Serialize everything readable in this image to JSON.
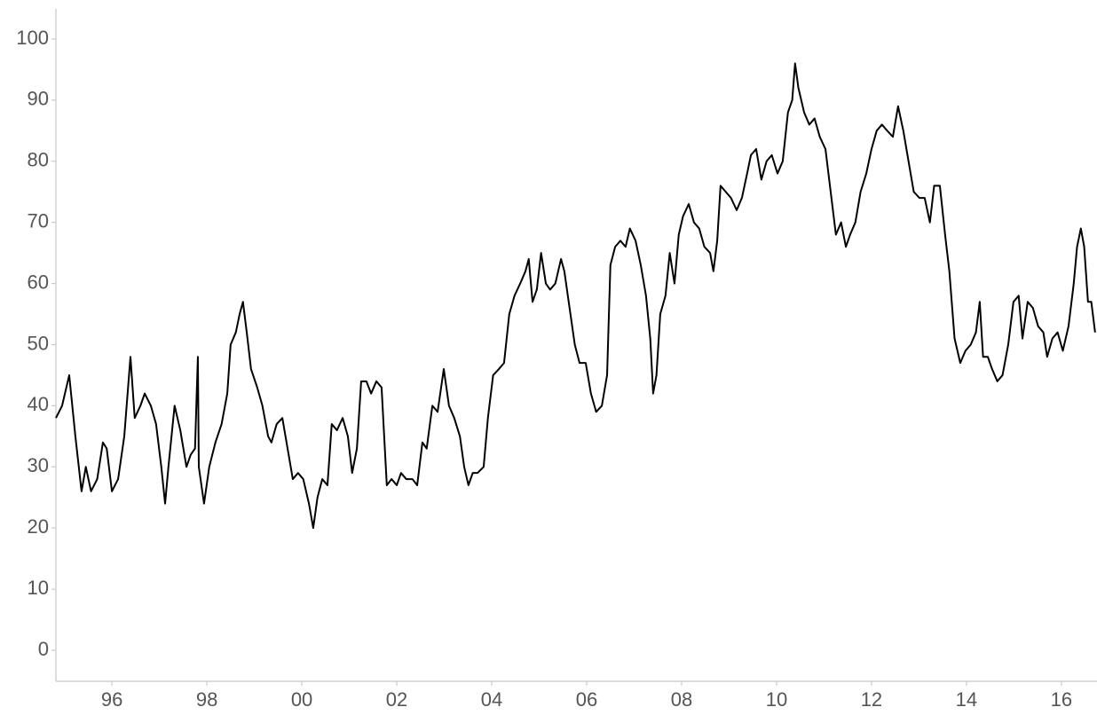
{
  "chart_data": {
    "type": "line",
    "color": "#000000",
    "x": [
      1994.82,
      1994.95,
      1995.1,
      1995.23,
      1995.36,
      1995.45,
      1995.56,
      1995.69,
      1995.81,
      1995.89,
      1996.0,
      1996.13,
      1996.26,
      1996.39,
      1996.48,
      1996.6,
      1996.69,
      1996.82,
      1996.93,
      1997.04,
      1997.12,
      1997.19,
      1997.32,
      1997.44,
      1997.57,
      1997.66,
      1997.75,
      1997.81,
      1997.83,
      1997.94,
      1998.05,
      1998.18,
      1998.31,
      1998.43,
      1998.5,
      1998.61,
      1998.69,
      1998.76,
      1998.84,
      1998.93,
      1999.06,
      1999.17,
      1999.29,
      1999.36,
      1999.47,
      1999.59,
      1999.7,
      1999.81,
      1999.92,
      2000.03,
      2000.15,
      2000.24,
      2000.33,
      2000.43,
      2000.54,
      2000.63,
      2000.74,
      2000.86,
      2000.97,
      2001.06,
      2001.16,
      2001.25,
      2001.36,
      2001.46,
      2001.57,
      2001.68,
      2001.79,
      2001.89,
      2002.0,
      2002.09,
      2002.2,
      2002.33,
      2002.43,
      2002.54,
      2002.63,
      2002.75,
      2002.86,
      2002.99,
      2003.1,
      2003.21,
      2003.33,
      2003.42,
      2003.51,
      2003.6,
      2003.7,
      2003.83,
      2003.92,
      2004.03,
      2004.15,
      2004.26,
      2004.37,
      2004.48,
      2004.6,
      2004.71,
      2004.78,
      2004.86,
      2004.95,
      2005.04,
      2005.14,
      2005.23,
      2005.34,
      2005.46,
      2005.53,
      2005.64,
      2005.75,
      2005.85,
      2005.98,
      2006.09,
      2006.2,
      2006.32,
      2006.43,
      2006.5,
      2006.6,
      2006.71,
      2006.82,
      2006.91,
      2007.03,
      2007.14,
      2007.25,
      2007.34,
      2007.4,
      2007.47,
      2007.55,
      2007.66,
      2007.75,
      2007.85,
      2007.94,
      2008.03,
      2008.15,
      2008.26,
      2008.37,
      2008.48,
      2008.6,
      2008.67,
      2008.75,
      2008.82,
      2008.93,
      2009.04,
      2009.16,
      2009.27,
      2009.38,
      2009.46,
      2009.57,
      2009.68,
      2009.79,
      2009.9,
      2010.02,
      2010.13,
      2010.24,
      2010.33,
      2010.39,
      2010.46,
      2010.58,
      2010.69,
      2010.8,
      2010.91,
      2011.03,
      2011.14,
      2011.25,
      2011.36,
      2011.46,
      2011.55,
      2011.66,
      2011.77,
      2011.89,
      2012.0,
      2012.11,
      2012.22,
      2012.33,
      2012.45,
      2012.56,
      2012.67,
      2012.78,
      2012.89,
      2013.01,
      2013.12,
      2013.23,
      2013.32,
      2013.44,
      2013.55,
      2013.64,
      2013.75,
      2013.87,
      2013.98,
      2014.09,
      2014.2,
      2014.28,
      2014.35,
      2014.45,
      2014.54,
      2014.65,
      2014.76,
      2014.88,
      2014.99,
      2015.1,
      2015.18,
      2015.29,
      2015.4,
      2015.51,
      2015.62,
      2015.7,
      2015.81,
      2015.92,
      2016.03,
      2016.15,
      2016.26,
      2016.33,
      2016.41,
      2016.48,
      2016.56,
      2016.63,
      2016.71
    ],
    "values": [
      38,
      40,
      45,
      35,
      26,
      30,
      26,
      28,
      34,
      33,
      26,
      28,
      35,
      48,
      38,
      40,
      42,
      40,
      37,
      30,
      24,
      30,
      40,
      36,
      30,
      32,
      33,
      48,
      30,
      24,
      30,
      34,
      37,
      42,
      50,
      52,
      55,
      57,
      52,
      46,
      43,
      40,
      35,
      34,
      37,
      38,
      33,
      28,
      29,
      28,
      24,
      20,
      25,
      28,
      27,
      37,
      36,
      38,
      35,
      29,
      33,
      44,
      44,
      42,
      44,
      43,
      27,
      28,
      27,
      29,
      28,
      28,
      27,
      34,
      33,
      40,
      39,
      46,
      40,
      38,
      35,
      30,
      27,
      29,
      29,
      30,
      38,
      45,
      46,
      47,
      55,
      58,
      60,
      62,
      64,
      57,
      59,
      65,
      60,
      59,
      60,
      64,
      62,
      56,
      50,
      47,
      47,
      42,
      39,
      40,
      45,
      63,
      66,
      67,
      66,
      69,
      67,
      63,
      58,
      51,
      42,
      45,
      55,
      58,
      65,
      60,
      68,
      71,
      73,
      70,
      69,
      66,
      65,
      62,
      67,
      76,
      75,
      74,
      72,
      74,
      78,
      81,
      82,
      77,
      80,
      81,
      78,
      80,
      88,
      90,
      96,
      92,
      88,
      86,
      87,
      84,
      82,
      75,
      68,
      70,
      66,
      68,
      70,
      75,
      78,
      82,
      85,
      86,
      85,
      84,
      89,
      85,
      80,
      75,
      74,
      74,
      70,
      76,
      76,
      68,
      62,
      51,
      47,
      49,
      50,
      52,
      57,
      48,
      48,
      46,
      44,
      45,
      50,
      57,
      58,
      51,
      57,
      56,
      53,
      52,
      48,
      51,
      52,
      49,
      53,
      60,
      66,
      69,
      66,
      57,
      57,
      52
    ],
    "xlim": [
      1994.82,
      2016.75
    ],
    "xticks": [
      {
        "value": 1996,
        "label": "96"
      },
      {
        "value": 1998,
        "label": "98"
      },
      {
        "value": 2000,
        "label": "00"
      },
      {
        "value": 2002,
        "label": "02"
      },
      {
        "value": 2004,
        "label": "04"
      },
      {
        "value": 2006,
        "label": "06"
      },
      {
        "value": 2008,
        "label": "08"
      },
      {
        "value": 2010,
        "label": "10"
      },
      {
        "value": 2012,
        "label": "12"
      },
      {
        "value": 2014,
        "label": "14"
      },
      {
        "value": 2016,
        "label": "16"
      }
    ],
    "ylim": [
      -5.08,
      104.93
    ],
    "yticks": [
      0,
      10,
      20,
      30,
      40,
      50,
      60,
      70,
      80,
      90,
      100
    ],
    "grid": false
  }
}
